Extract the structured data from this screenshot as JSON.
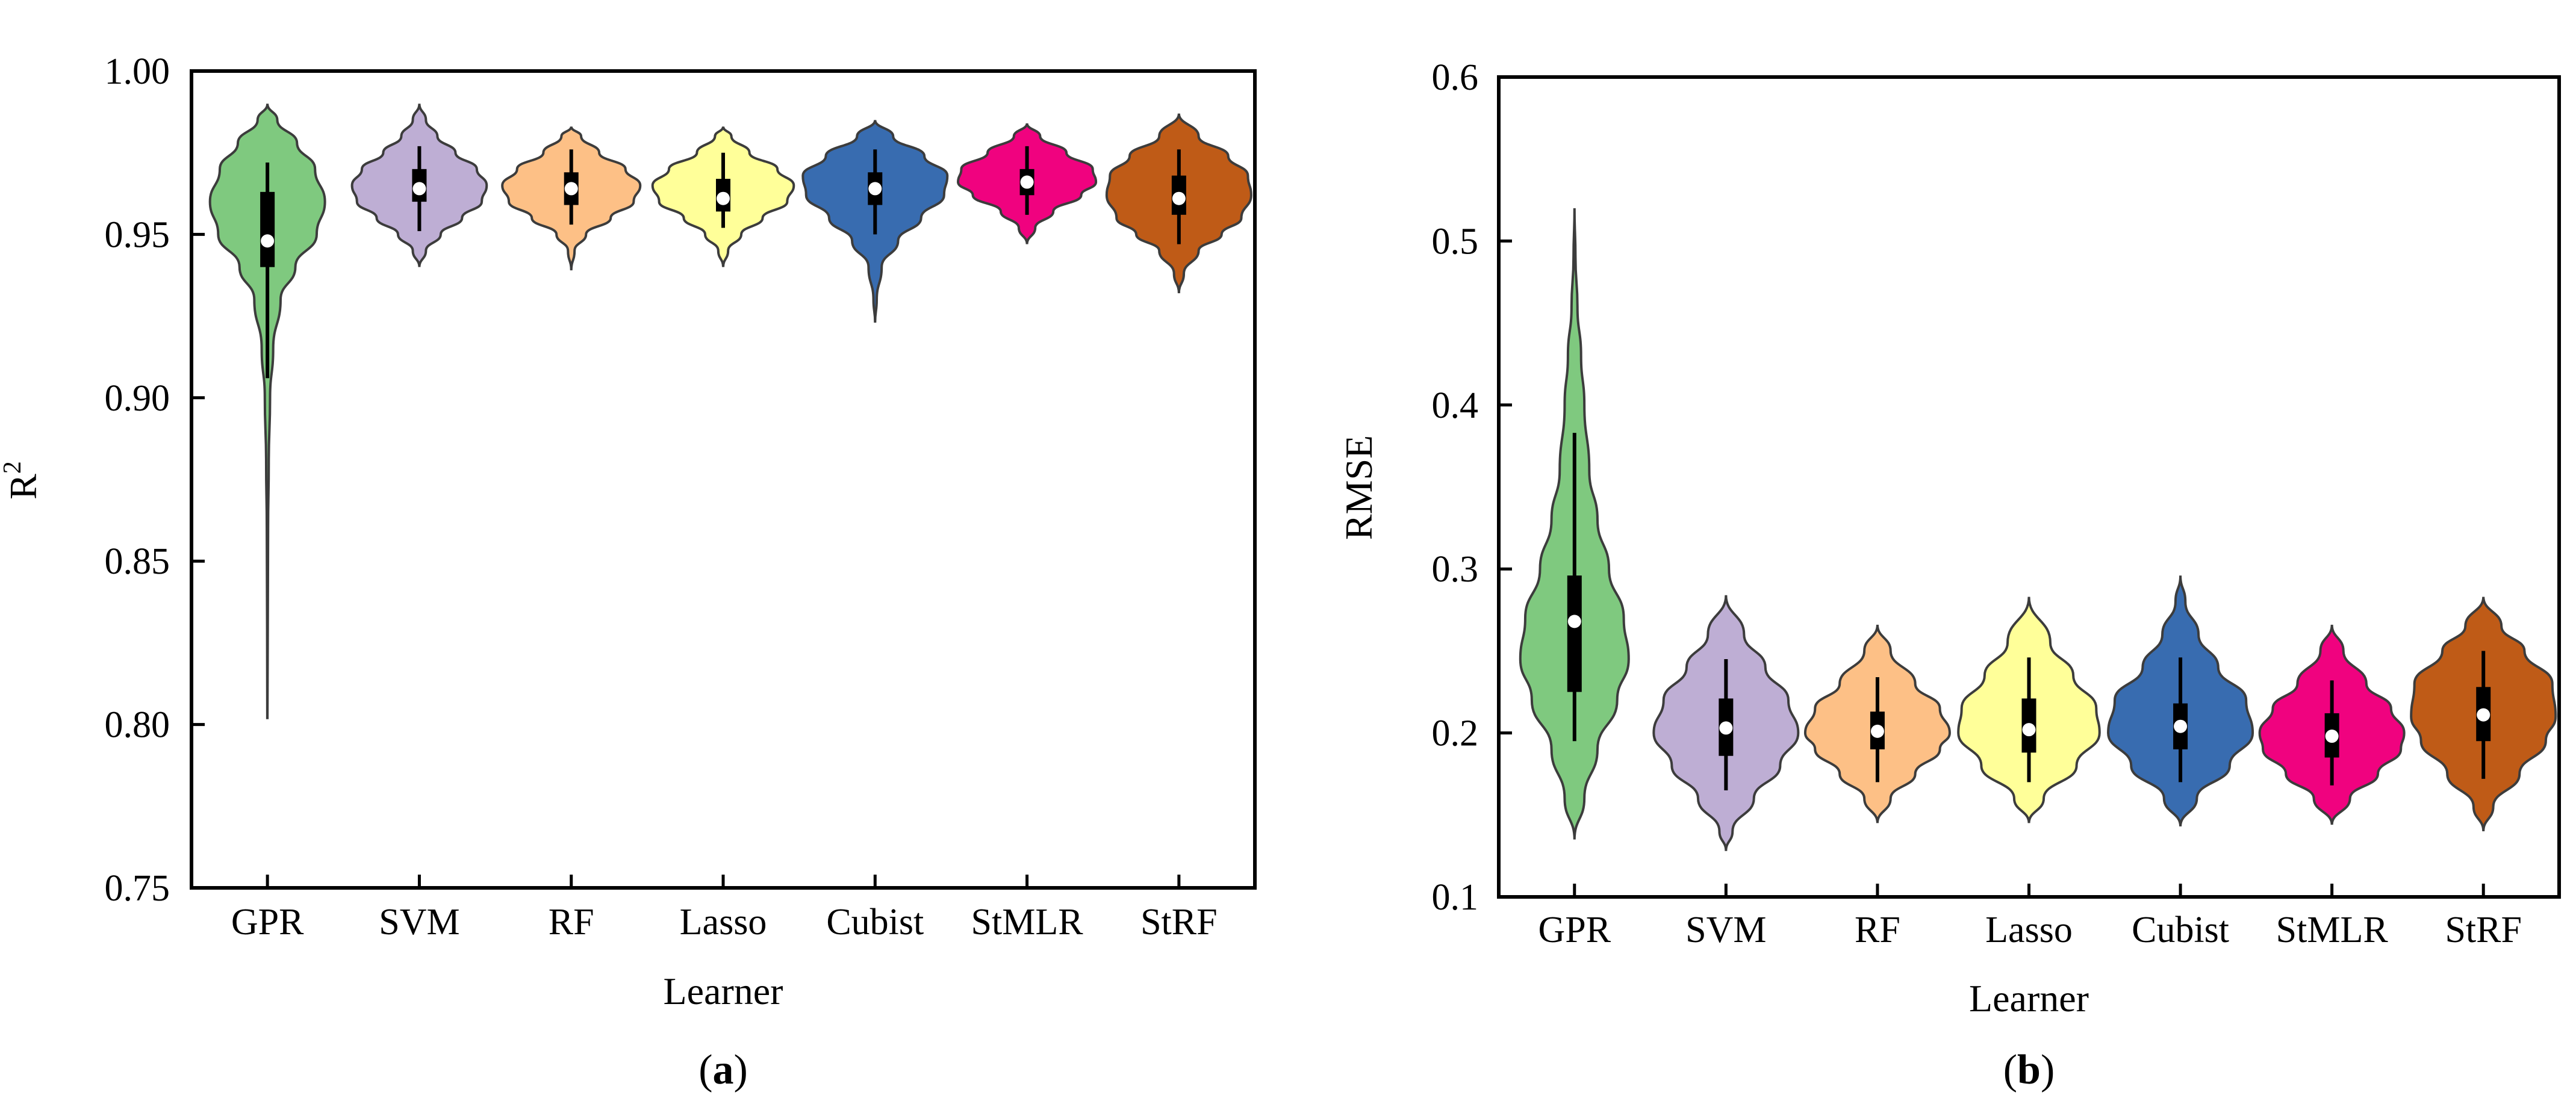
{
  "chart_data": [
    {
      "type": "violin",
      "panel_label": "a",
      "xlabel": "Learner",
      "ylabel": "R",
      "ylabel_superscript": "2",
      "ylim": [
        0.75,
        1.0
      ],
      "yticks": [
        0.75,
        0.8,
        0.85,
        0.9,
        0.95,
        1.0
      ],
      "ytick_labels": [
        "0.75",
        "0.80",
        "0.85",
        "0.90",
        "0.95",
        "1.00"
      ],
      "categories": [
        "GPR",
        "SVM",
        "RF",
        "Lasso",
        "Cubist",
        "StMLR",
        "StRF"
      ],
      "series": [
        {
          "name": "GPR",
          "color": "#7fc97f",
          "min": 0.802,
          "max": 0.99,
          "whisker_low": 0.906,
          "whisker_high": 0.972,
          "q1": 0.94,
          "q3": 0.963,
          "median": 0.948,
          "density": [
            [
              0.802,
              0.001
            ],
            [
              0.83,
              0.002
            ],
            [
              0.86,
              0.004
            ],
            [
              0.88,
              0.008
            ],
            [
              0.9,
              0.016
            ],
            [
              0.915,
              0.035
            ],
            [
              0.93,
              0.08
            ],
            [
              0.94,
              0.17
            ],
            [
              0.95,
              0.3
            ],
            [
              0.96,
              0.35
            ],
            [
              0.97,
              0.29
            ],
            [
              0.978,
              0.18
            ],
            [
              0.985,
              0.06
            ],
            [
              0.99,
              0.0
            ]
          ]
        },
        {
          "name": "SVM",
          "color": "#beaed4",
          "min": 0.94,
          "max": 0.99,
          "whisker_low": 0.951,
          "whisker_high": 0.977,
          "q1": 0.96,
          "q3": 0.97,
          "median": 0.964,
          "density": [
            [
              0.94,
              0.0
            ],
            [
              0.945,
              0.04
            ],
            [
              0.95,
              0.13
            ],
            [
              0.955,
              0.26
            ],
            [
              0.96,
              0.38
            ],
            [
              0.965,
              0.41
            ],
            [
              0.97,
              0.35
            ],
            [
              0.975,
              0.22
            ],
            [
              0.98,
              0.11
            ],
            [
              0.985,
              0.04
            ],
            [
              0.99,
              0.0
            ]
          ]
        },
        {
          "name": "RF",
          "color": "#fdc086",
          "min": 0.939,
          "max": 0.983,
          "whisker_low": 0.953,
          "whisker_high": 0.976,
          "q1": 0.959,
          "q3": 0.969,
          "median": 0.964,
          "density": [
            [
              0.939,
              0.0
            ],
            [
              0.945,
              0.02
            ],
            [
              0.95,
              0.09
            ],
            [
              0.955,
              0.24
            ],
            [
              0.96,
              0.38
            ],
            [
              0.965,
              0.42
            ],
            [
              0.97,
              0.33
            ],
            [
              0.975,
              0.17
            ],
            [
              0.98,
              0.06
            ],
            [
              0.983,
              0.0
            ]
          ]
        },
        {
          "name": "Lasso",
          "color": "#ffff99",
          "min": 0.94,
          "max": 0.983,
          "whisker_low": 0.952,
          "whisker_high": 0.975,
          "q1": 0.957,
          "q3": 0.967,
          "median": 0.961,
          "density": [
            [
              0.94,
              0.0
            ],
            [
              0.945,
              0.03
            ],
            [
              0.95,
              0.11
            ],
            [
              0.955,
              0.24
            ],
            [
              0.96,
              0.39
            ],
            [
              0.965,
              0.43
            ],
            [
              0.97,
              0.33
            ],
            [
              0.975,
              0.16
            ],
            [
              0.98,
              0.05
            ],
            [
              0.983,
              0.0
            ]
          ]
        },
        {
          "name": "Cubist",
          "color": "#386cb0",
          "min": 0.923,
          "max": 0.985,
          "whisker_low": 0.95,
          "whisker_high": 0.976,
          "q1": 0.959,
          "q3": 0.969,
          "median": 0.964,
          "density": [
            [
              0.923,
              0.0
            ],
            [
              0.93,
              0.01
            ],
            [
              0.94,
              0.04
            ],
            [
              0.948,
              0.14
            ],
            [
              0.955,
              0.28
            ],
            [
              0.962,
              0.42
            ],
            [
              0.968,
              0.44
            ],
            [
              0.974,
              0.3
            ],
            [
              0.98,
              0.11
            ],
            [
              0.985,
              0.0
            ]
          ]
        },
        {
          "name": "StMLR",
          "color": "#f0027f",
          "min": 0.947,
          "max": 0.984,
          "whisker_low": 0.956,
          "whisker_high": 0.977,
          "q1": 0.962,
          "q3": 0.97,
          "median": 0.966,
          "density": [
            [
              0.947,
              0.0
            ],
            [
              0.952,
              0.05
            ],
            [
              0.957,
              0.16
            ],
            [
              0.962,
              0.33
            ],
            [
              0.966,
              0.42
            ],
            [
              0.97,
              0.4
            ],
            [
              0.975,
              0.24
            ],
            [
              0.98,
              0.08
            ],
            [
              0.984,
              0.0
            ]
          ]
        },
        {
          "name": "StRF",
          "color": "#bf5b17",
          "min": 0.932,
          "max": 0.987,
          "whisker_low": 0.947,
          "whisker_high": 0.976,
          "q1": 0.956,
          "q3": 0.968,
          "median": 0.961,
          "density": [
            [
              0.932,
              0.0
            ],
            [
              0.938,
              0.03
            ],
            [
              0.945,
              0.12
            ],
            [
              0.95,
              0.26
            ],
            [
              0.955,
              0.38
            ],
            [
              0.962,
              0.44
            ],
            [
              0.968,
              0.42
            ],
            [
              0.974,
              0.3
            ],
            [
              0.98,
              0.12
            ],
            [
              0.987,
              0.0
            ]
          ]
        }
      ]
    },
    {
      "type": "violin",
      "panel_label": "b",
      "xlabel": "Learner",
      "ylabel": "RMSE",
      "ylim": [
        0.1,
        0.6
      ],
      "yticks": [
        0.1,
        0.2,
        0.3,
        0.4,
        0.5,
        0.6
      ],
      "ytick_labels": [
        "0.1",
        "0.2",
        "0.3",
        "0.4",
        "0.5",
        "0.6"
      ],
      "categories": [
        "GPR",
        "SVM",
        "RF",
        "Lasso",
        "Cubist",
        "StMLR",
        "StRF"
      ],
      "series": [
        {
          "name": "GPR",
          "color": "#7fc97f",
          "min": 0.135,
          "max": 0.52,
          "whisker_low": 0.195,
          "whisker_high": 0.383,
          "q1": 0.225,
          "q3": 0.296,
          "median": 0.268,
          "density": [
            [
              0.135,
              0.0
            ],
            [
              0.16,
              0.06
            ],
            [
              0.19,
              0.14
            ],
            [
              0.22,
              0.26
            ],
            [
              0.245,
              0.33
            ],
            [
              0.27,
              0.3
            ],
            [
              0.3,
              0.21
            ],
            [
              0.33,
              0.14
            ],
            [
              0.36,
              0.09
            ],
            [
              0.4,
              0.06
            ],
            [
              0.43,
              0.04
            ],
            [
              0.46,
              0.018
            ],
            [
              0.49,
              0.006
            ],
            [
              0.52,
              0.0
            ]
          ]
        },
        {
          "name": "SVM",
          "color": "#beaed4",
          "min": 0.128,
          "max": 0.284,
          "whisker_low": 0.165,
          "whisker_high": 0.245,
          "q1": 0.186,
          "q3": 0.221,
          "median": 0.203,
          "density": [
            [
              0.128,
              0.0
            ],
            [
              0.14,
              0.04
            ],
            [
              0.16,
              0.17
            ],
            [
              0.18,
              0.33
            ],
            [
              0.2,
              0.44
            ],
            [
              0.22,
              0.38
            ],
            [
              0.24,
              0.24
            ],
            [
              0.26,
              0.11
            ],
            [
              0.284,
              0.0
            ]
          ]
        },
        {
          "name": "RF",
          "color": "#fdc086",
          "min": 0.145,
          "max": 0.266,
          "whisker_low": 0.17,
          "whisker_high": 0.234,
          "q1": 0.19,
          "q3": 0.213,
          "median": 0.201,
          "density": [
            [
              0.145,
              0.0
            ],
            [
              0.16,
              0.08
            ],
            [
              0.175,
              0.23
            ],
            [
              0.19,
              0.38
            ],
            [
              0.2,
              0.44
            ],
            [
              0.215,
              0.38
            ],
            [
              0.23,
              0.23
            ],
            [
              0.25,
              0.08
            ],
            [
              0.266,
              0.0
            ]
          ]
        },
        {
          "name": "Lasso",
          "color": "#ffff99",
          "min": 0.145,
          "max": 0.283,
          "whisker_low": 0.17,
          "whisker_high": 0.246,
          "q1": 0.188,
          "q3": 0.221,
          "median": 0.202,
          "density": [
            [
              0.145,
              0.0
            ],
            [
              0.16,
              0.09
            ],
            [
              0.18,
              0.29
            ],
            [
              0.2,
              0.43
            ],
            [
              0.215,
              0.41
            ],
            [
              0.235,
              0.27
            ],
            [
              0.255,
              0.13
            ],
            [
              0.283,
              0.0
            ]
          ]
        },
        {
          "name": "Cubist",
          "color": "#386cb0",
          "min": 0.143,
          "max": 0.296,
          "whisker_low": 0.17,
          "whisker_high": 0.246,
          "q1": 0.19,
          "q3": 0.218,
          "median": 0.204,
          "density": [
            [
              0.143,
              0.0
            ],
            [
              0.16,
              0.1
            ],
            [
              0.18,
              0.3
            ],
            [
              0.2,
              0.44
            ],
            [
              0.22,
              0.4
            ],
            [
              0.24,
              0.23
            ],
            [
              0.26,
              0.11
            ],
            [
              0.28,
              0.03
            ],
            [
              0.296,
              0.0
            ]
          ]
        },
        {
          "name": "StMLR",
          "color": "#f0027f",
          "min": 0.144,
          "max": 0.266,
          "whisker_low": 0.168,
          "whisker_high": 0.232,
          "q1": 0.185,
          "q3": 0.212,
          "median": 0.198,
          "density": [
            [
              0.144,
              0.0
            ],
            [
              0.16,
              0.11
            ],
            [
              0.175,
              0.28
            ],
            [
              0.19,
              0.42
            ],
            [
              0.2,
              0.44
            ],
            [
              0.215,
              0.36
            ],
            [
              0.23,
              0.21
            ],
            [
              0.25,
              0.07
            ],
            [
              0.266,
              0.0
            ]
          ]
        },
        {
          "name": "StRF",
          "color": "#bf5b17",
          "min": 0.14,
          "max": 0.283,
          "whisker_low": 0.172,
          "whisker_high": 0.25,
          "q1": 0.195,
          "q3": 0.228,
          "median": 0.211,
          "density": [
            [
              0.14,
              0.0
            ],
            [
              0.155,
              0.06
            ],
            [
              0.175,
              0.22
            ],
            [
              0.195,
              0.38
            ],
            [
              0.21,
              0.44
            ],
            [
              0.23,
              0.42
            ],
            [
              0.25,
              0.25
            ],
            [
              0.265,
              0.11
            ],
            [
              0.283,
              0.0
            ]
          ]
        }
      ]
    }
  ]
}
